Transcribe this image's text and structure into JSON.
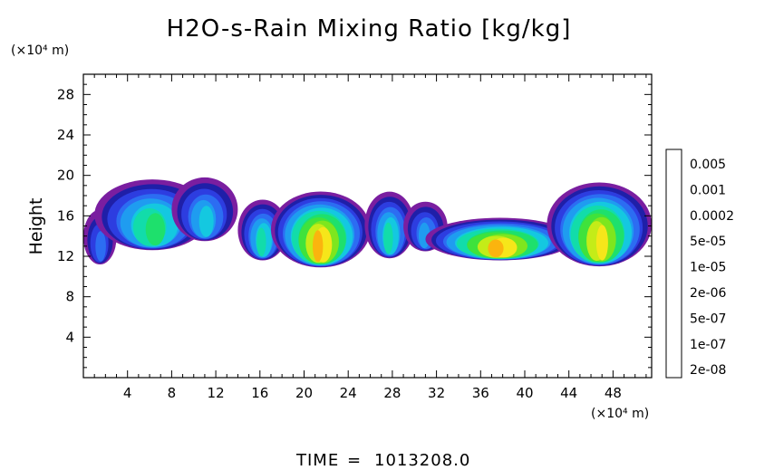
{
  "chart_data": {
    "type": "heatmap",
    "title": "H2O-s-Rain Mixing Ratio [kg/kg]",
    "ylabel": "Height",
    "xunit": "(×10⁴ m)",
    "yunit": "(×10⁴ m)",
    "xlim": [
      0,
      51.5
    ],
    "ylim": [
      0,
      30
    ],
    "xticks": [
      4,
      8,
      12,
      16,
      20,
      24,
      28,
      32,
      36,
      40,
      44,
      48
    ],
    "yticks": [
      4,
      8,
      12,
      16,
      20,
      24,
      28
    ],
    "colorbar": {
      "labels": [
        "0.005",
        "0.001",
        "0.0002",
        "5e-05",
        "1e-05",
        "2e-06",
        "5e-07",
        "1e-07",
        "2e-08"
      ],
      "levels": [
        {
          "min": 2e-08,
          "color": "#7a1ea0"
        },
        {
          "min": 5e-08,
          "color": "#1f1fa8"
        },
        {
          "min": 1e-07,
          "color": "#2d3de0"
        },
        {
          "min": 2e-07,
          "color": "#2c6df2"
        },
        {
          "min": 5e-07,
          "color": "#1f9cf0"
        },
        {
          "min": 1e-06,
          "color": "#14c8e0"
        },
        {
          "min": 2e-06,
          "color": "#12dcaa"
        },
        {
          "min": 5e-06,
          "color": "#1ee06c"
        },
        {
          "min": 1e-05,
          "color": "#3fe23c"
        },
        {
          "min": 2e-05,
          "color": "#7ee61e"
        },
        {
          "min": 5e-05,
          "color": "#c4ec18"
        },
        {
          "min": 0.0001,
          "color": "#f6e61a"
        },
        {
          "min": 0.0002,
          "color": "#fbb40e"
        },
        {
          "min": 0.0005,
          "color": "#f87a0c"
        },
        {
          "min": 0.001,
          "color": "#f2320a"
        },
        {
          "min": 0.002,
          "color": "#ee6a66"
        },
        {
          "min": 0.005,
          "color": "#f7a6a4"
        }
      ]
    },
    "clouds": [
      {
        "x0": 0.0,
        "x1": 3.0,
        "ybot": 11.2,
        "ytop": 16.6,
        "core": 3
      },
      {
        "x0": 1.0,
        "x1": 11.5,
        "ybot": 12.6,
        "ytop": 19.6,
        "core": 7
      },
      {
        "x0": 8.0,
        "x1": 14.0,
        "ybot": 13.5,
        "ytop": 19.8,
        "core": 5
      },
      {
        "x0": 14.0,
        "x1": 18.5,
        "ybot": 11.6,
        "ytop": 17.6,
        "core": 6
      },
      {
        "x0": 17.0,
        "x1": 26.0,
        "ybot": 10.9,
        "ytop": 18.4,
        "core": 12
      },
      {
        "x0": 25.5,
        "x1": 30.0,
        "ybot": 11.8,
        "ytop": 18.4,
        "core": 6
      },
      {
        "x0": 29.0,
        "x1": 33.0,
        "ybot": 12.5,
        "ytop": 17.4,
        "core": 4
      },
      {
        "x0": 31.0,
        "x1": 44.5,
        "ybot": 11.6,
        "ytop": 15.8,
        "core": 12
      },
      {
        "x0": 42.0,
        "x1": 51.5,
        "ybot": 11.0,
        "ytop": 19.3,
        "core": 11
      }
    ]
  },
  "footer": {
    "time_label": "TIME",
    "time_eq": "=",
    "time_value": "1013208.0"
  }
}
